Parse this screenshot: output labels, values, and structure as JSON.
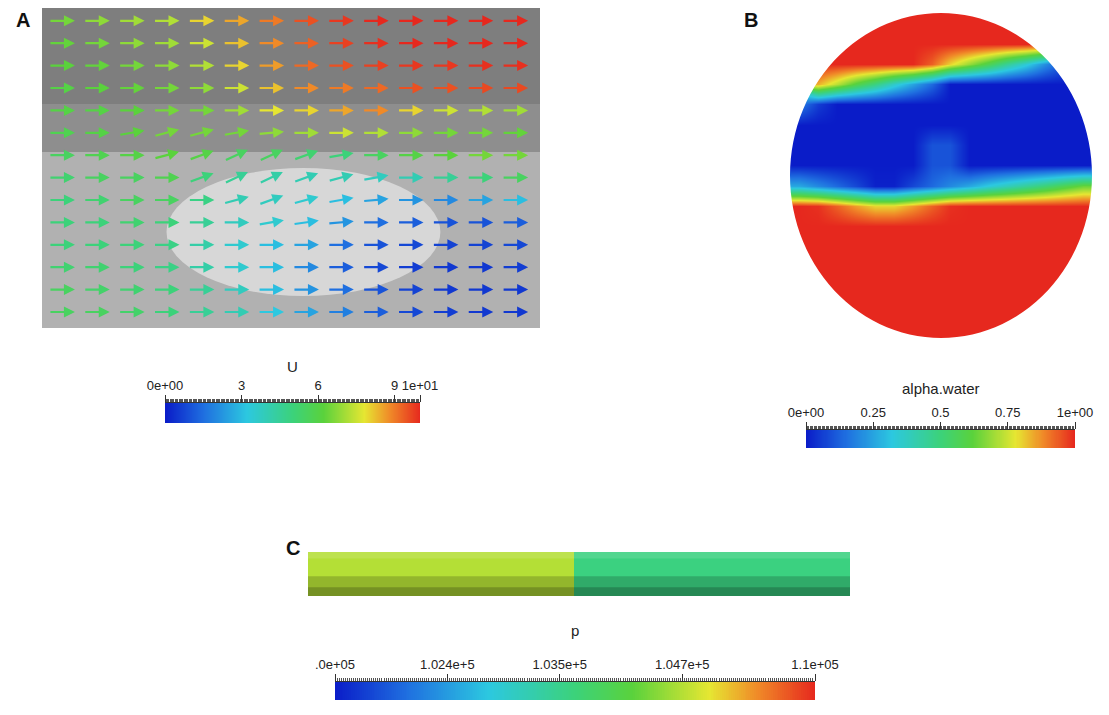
{
  "chart_data": [
    {
      "type": "vector_field",
      "label": "A",
      "tick_labels": false,
      "xlim": [
        0,
        1
      ],
      "ylim": [
        0,
        1
      ],
      "x": [
        0.04,
        0.11,
        0.18,
        0.25,
        0.32,
        0.39,
        0.46,
        0.53,
        0.6,
        0.67,
        0.74,
        0.81,
        0.88,
        0.95
      ],
      "rows": [
        {
          "y": 0.96,
          "U": [
            6.5,
            6.8,
            7,
            7.2,
            8,
            8.5,
            9,
            9.5,
            9.8,
            10,
            10,
            10,
            10,
            10
          ],
          "angle": [
            0,
            0,
            0,
            0,
            0,
            0,
            0,
            0,
            0,
            0,
            0,
            0,
            0,
            0
          ]
        },
        {
          "y": 0.89,
          "U": [
            6.3,
            6.5,
            6.8,
            7,
            7.5,
            8.2,
            8.8,
            9.3,
            9.7,
            9.9,
            10,
            10,
            10,
            10
          ],
          "angle": [
            0,
            0,
            0,
            0,
            0,
            0,
            0,
            0,
            0,
            0,
            0,
            0,
            0,
            0
          ]
        },
        {
          "y": 0.82,
          "U": [
            6.2,
            6.3,
            6.5,
            6.8,
            7.2,
            8,
            8.6,
            9.2,
            9.5,
            9.7,
            9.8,
            9.8,
            9.9,
            9.9
          ],
          "angle": [
            0,
            0,
            0,
            0,
            0,
            0,
            0,
            0,
            0,
            0,
            0,
            0,
            0,
            0
          ]
        },
        {
          "y": 0.75,
          "U": [
            6,
            6.2,
            6.3,
            6.5,
            6.8,
            7.5,
            8.2,
            8.8,
            9,
            9.2,
            9.5,
            9.5,
            9.6,
            9.6
          ],
          "angle": [
            0,
            0,
            0,
            0,
            0,
            0,
            0,
            0,
            0,
            0,
            0,
            0,
            0,
            0
          ]
        },
        {
          "y": 0.68,
          "U": [
            6,
            6,
            6.2,
            6.5,
            6.5,
            7,
            7.8,
            8,
            8.5,
            8.8,
            8,
            7.5,
            7.2,
            7
          ],
          "angle": [
            0,
            0,
            0,
            0,
            0,
            0,
            0,
            0,
            0,
            0,
            0,
            0,
            0,
            0
          ]
        },
        {
          "y": 0.61,
          "U": [
            5.8,
            6,
            6.2,
            6.5,
            6.5,
            6.5,
            6.8,
            7,
            7.5,
            7.2,
            6.8,
            6.5,
            6.5,
            6.3
          ],
          "angle": [
            0,
            0,
            10,
            15,
            15,
            10,
            5,
            0,
            0,
            0,
            0,
            0,
            0,
            0
          ]
        },
        {
          "y": 0.54,
          "U": [
            5.5,
            5.8,
            6,
            6.2,
            6,
            5.5,
            5.5,
            5.2,
            5,
            5.5,
            6,
            6.2,
            6.5,
            6.5
          ],
          "angle": [
            0,
            0,
            0,
            15,
            20,
            25,
            25,
            20,
            10,
            0,
            0,
            0,
            0,
            0
          ]
        },
        {
          "y": 0.47,
          "U": [
            5.2,
            5.5,
            5.5,
            5.8,
            5,
            4.5,
            4.2,
            4,
            4,
            3.8,
            4,
            4.5,
            5,
            5.5
          ],
          "angle": [
            0,
            0,
            0,
            0,
            20,
            25,
            25,
            20,
            15,
            10,
            0,
            0,
            0,
            0
          ]
        },
        {
          "y": 0.4,
          "U": [
            5,
            5.2,
            5.5,
            5.5,
            4.8,
            4,
            3.8,
            3.5,
            3,
            2.5,
            2.2,
            2,
            2.5,
            3
          ],
          "angle": [
            0,
            0,
            0,
            0,
            0,
            15,
            20,
            15,
            10,
            5,
            0,
            0,
            0,
            0
          ]
        },
        {
          "y": 0.33,
          "U": [
            5,
            5,
            5.2,
            5,
            4.5,
            3.8,
            3.5,
            3,
            2.2,
            1.5,
            1.2,
            1,
            1,
            1.2
          ],
          "angle": [
            0,
            0,
            0,
            0,
            0,
            0,
            10,
            8,
            5,
            0,
            0,
            0,
            0,
            0
          ]
        },
        {
          "y": 0.26,
          "U": [
            5,
            5,
            5,
            4.8,
            4.2,
            3.5,
            3,
            2.5,
            1.5,
            1,
            0.8,
            0.7,
            0.7,
            0.8
          ],
          "angle": [
            0,
            0,
            0,
            0,
            0,
            0,
            0,
            0,
            0,
            0,
            0,
            0,
            0,
            0
          ]
        },
        {
          "y": 0.19,
          "U": [
            5.2,
            5.2,
            5,
            4.8,
            4.2,
            3.5,
            3,
            2,
            1.2,
            0.8,
            0.6,
            0.5,
            0.5,
            0.6
          ],
          "angle": [
            0,
            0,
            0,
            0,
            0,
            0,
            0,
            0,
            0,
            0,
            0,
            0,
            0,
            0
          ]
        },
        {
          "y": 0.12,
          "U": [
            5.5,
            5.3,
            5.2,
            5,
            4.5,
            3.8,
            3,
            2.2,
            1.5,
            1,
            0.7,
            0.5,
            0.5,
            0.5
          ],
          "angle": [
            0,
            0,
            0,
            0,
            0,
            0,
            0,
            0,
            0,
            0,
            0,
            0,
            0,
            0
          ]
        },
        {
          "y": 0.05,
          "U": [
            5.5,
            5.5,
            5.3,
            5,
            4.5,
            4,
            3.2,
            2.5,
            1.8,
            1.2,
            0.8,
            0.6,
            0.5,
            0.5
          ],
          "angle": [
            0,
            0,
            0,
            0,
            0,
            0,
            0,
            0,
            0,
            0,
            0,
            0,
            0,
            0
          ]
        }
      ],
      "colorbar": {
        "title": "U",
        "range": [
          0,
          10
        ],
        "ticks": [
          {
            "value": 0,
            "label": "0e+00"
          },
          3,
          6,
          9,
          {
            "value": 10,
            "label": "1e+01"
          }
        ]
      }
    },
    {
      "type": "disk",
      "label": "B",
      "tick_labels": false,
      "xlim": [
        0,
        1
      ],
      "ylim": [
        1,
        0
      ],
      "x": [
        0.031,
        0.094,
        0.156,
        0.219,
        0.281,
        0.344,
        0.406,
        0.469,
        0.531,
        0.594,
        0.656,
        0.719,
        0.781,
        0.844,
        0.906,
        0.969
      ],
      "y": [
        0.031,
        0.094,
        0.156,
        0.219,
        0.281,
        0.344,
        0.406,
        0.469,
        0.531,
        0.594,
        0.656,
        0.719,
        0.781,
        0.844,
        0.906,
        0.969
      ],
      "cells": [
        [
          null,
          null,
          null,
          null,
          1,
          1,
          1,
          1,
          1,
          1,
          1,
          1,
          null,
          null,
          null,
          null
        ],
        [
          null,
          null,
          1,
          1,
          1,
          1,
          1,
          1,
          1,
          1,
          1,
          1,
          1,
          0.99,
          null,
          null
        ],
        [
          null,
          1,
          1,
          1,
          1,
          1,
          1,
          0.93,
          0.8,
          0.69,
          0.58,
          0.45,
          0.34,
          0.21,
          0.1,
          null
        ],
        [
          null,
          0.84,
          0.73,
          0.6,
          0.49,
          0.36,
          0.25,
          0.14,
          0,
          0,
          0,
          0,
          0,
          0,
          0,
          null
        ],
        [
          0.18,
          0.06,
          0,
          0,
          0,
          0,
          0,
          0,
          0,
          0,
          0,
          0,
          0,
          0,
          0,
          0
        ],
        [
          0,
          0,
          0,
          0,
          0,
          0,
          0,
          0,
          0,
          0,
          0,
          0,
          0,
          0,
          0,
          0
        ],
        [
          0,
          0,
          0,
          0,
          0,
          0,
          0,
          0.1,
          0.1,
          0,
          0,
          0,
          0,
          0,
          0,
          0
        ],
        [
          0,
          0,
          0,
          0,
          0,
          0,
          0,
          0.1,
          0.1,
          0,
          0,
          0,
          0,
          0,
          0,
          0
        ],
        [
          0.26,
          0.2,
          0.14,
          0.08,
          0.01,
          0.01,
          0.08,
          0.14,
          0.2,
          0.26,
          0.33,
          0.39,
          0.45,
          0.51,
          0.58,
          0.64
        ],
        [
          1,
          0.99,
          0.93,
          0.86,
          0.8,
          0.8,
          0.86,
          0.93,
          0.99,
          1,
          1,
          1,
          1,
          1,
          1,
          1
        ],
        [
          1,
          1,
          1,
          1,
          1,
          1,
          1,
          1,
          1,
          1,
          1,
          1,
          1,
          1,
          1,
          1
        ],
        [
          1,
          1,
          1,
          1,
          1,
          1,
          1,
          1,
          1,
          1,
          1,
          1,
          1,
          1,
          1,
          1
        ],
        [
          null,
          1,
          1,
          1,
          1,
          1,
          1,
          1,
          1,
          1,
          1,
          1,
          1,
          1,
          1,
          null
        ],
        [
          null,
          1,
          1,
          1,
          1,
          1,
          1,
          1,
          1,
          1,
          1,
          1,
          1,
          1,
          1,
          null
        ],
        [
          null,
          null,
          1,
          1,
          1,
          1,
          1,
          1,
          1,
          1,
          1,
          1,
          1,
          1,
          null,
          null
        ],
        [
          null,
          null,
          null,
          null,
          1,
          1,
          1,
          1,
          1,
          1,
          1,
          1,
          null,
          null,
          null,
          null
        ]
      ],
      "colorbar": {
        "title": "alpha.water",
        "range": [
          0,
          1
        ],
        "ticks": [
          {
            "value": 0,
            "label": "0e+00"
          },
          0.25,
          0.5,
          0.75,
          {
            "value": 1,
            "label": "1e+00"
          }
        ]
      }
    },
    {
      "type": "band",
      "label": "C",
      "tick_labels": false,
      "xlim": [
        0,
        1
      ],
      "ylim": [
        0,
        1
      ],
      "x_edges": [
        0,
        0.49,
        1
      ],
      "cells": [
        104700,
        103600
      ],
      "colorbar": {
        "title": "p",
        "range": [
          101300,
          106000
        ],
        "ticks": [
          {
            "value": 101300,
            "label": ".0e+05"
          },
          {
            "value": 102400,
            "label": "1.024e+5"
          },
          {
            "value": 103500,
            "label": "1.035e+5"
          },
          {
            "value": 104700,
            "label": "1.047e+5"
          },
          {
            "value": 106000,
            "label": "1.1e+05"
          }
        ]
      }
    }
  ]
}
